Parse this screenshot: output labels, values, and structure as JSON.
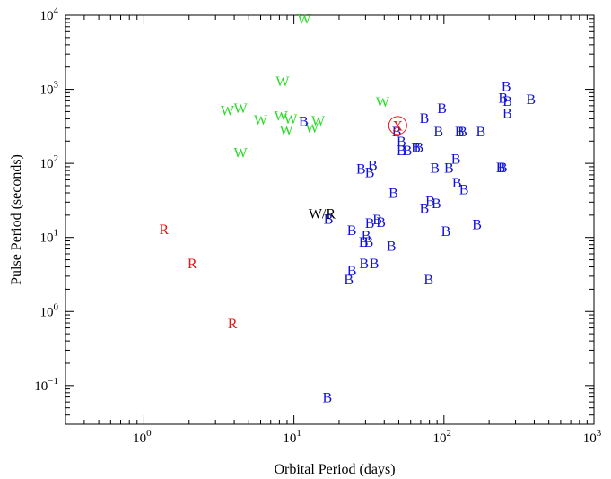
{
  "chart_data": {
    "type": "scatter",
    "title": "",
    "xlabel": "Orbital Period (days)",
    "ylabel": "Pulse Period (seconds)",
    "xscale": "log",
    "yscale": "log",
    "xlim": [
      0.3,
      1000
    ],
    "ylim": [
      0.03,
      10000
    ],
    "grid": false,
    "xticks": [
      {
        "value": 1,
        "mant": "10",
        "exp": "0"
      },
      {
        "value": 10,
        "mant": "10",
        "exp": "1"
      },
      {
        "value": 100,
        "mant": "10",
        "exp": "2"
      },
      {
        "value": 1000,
        "mant": "10",
        "exp": "3"
      }
    ],
    "yticks": [
      {
        "value": 0.1,
        "mant": "10",
        "exp": "−1"
      },
      {
        "value": 1,
        "mant": "10",
        "exp": "0"
      },
      {
        "value": 10,
        "mant": "10",
        "exp": "1"
      },
      {
        "value": 100,
        "mant": "10",
        "exp": "2"
      },
      {
        "value": 1000,
        "mant": "10",
        "exp": "3"
      },
      {
        "value": 10000,
        "mant": "10",
        "exp": "4"
      }
    ],
    "colors": {
      "W": "#22dd22",
      "R": "#ee1111",
      "B": "#1111dd",
      "X": "#ee1111",
      "region": "#000000"
    },
    "series": [
      {
        "marker": "W",
        "points": [
          [
            11.7,
            8900
          ],
          [
            8.4,
            1280
          ],
          [
            39.0,
            680
          ],
          [
            3.6,
            520
          ],
          [
            4.4,
            560
          ],
          [
            6.0,
            390
          ],
          [
            8.2,
            440
          ],
          [
            9.5,
            400
          ],
          [
            8.9,
            280
          ],
          [
            14.5,
            380
          ],
          [
            13.2,
            300
          ],
          [
            4.4,
            140
          ]
        ]
      },
      {
        "marker": "R",
        "points": [
          [
            1.36,
            13
          ],
          [
            2.1,
            4.5
          ],
          [
            3.9,
            0.69
          ]
        ]
      },
      {
        "marker": "B",
        "points": [
          [
            11.6,
            370
          ],
          [
            48.4,
            270
          ],
          [
            52,
            200
          ],
          [
            52,
            150
          ],
          [
            57,
            150
          ],
          [
            65,
            165
          ],
          [
            68,
            165
          ],
          [
            92,
            270
          ],
          [
            127,
            270
          ],
          [
            133,
            270
          ],
          [
            176,
            270
          ],
          [
            74,
            410
          ],
          [
            97,
            560
          ],
          [
            260,
            1100
          ],
          [
            248,
            770
          ],
          [
            265,
            700
          ],
          [
            264,
            480
          ],
          [
            380,
            740
          ],
          [
            28,
            85
          ],
          [
            33.5,
            95
          ],
          [
            32,
            76
          ],
          [
            87,
            87
          ],
          [
            108,
            87
          ],
          [
            120,
            115
          ],
          [
            239,
            89
          ],
          [
            246,
            89
          ],
          [
            46,
            40
          ],
          [
            122,
            55
          ],
          [
            136,
            45
          ],
          [
            81,
            31
          ],
          [
            89,
            29
          ],
          [
            74,
            25
          ],
          [
            17,
            17.9
          ],
          [
            36,
            17.5
          ],
          [
            38,
            16.1
          ],
          [
            32,
            15.8
          ],
          [
            24.3,
            12.5
          ],
          [
            30.3,
            10.7
          ],
          [
            29.1,
            8.7
          ],
          [
            31.5,
            8.8
          ],
          [
            44.6,
            7.7
          ],
          [
            103,
            12.2
          ],
          [
            166,
            15
          ],
          [
            29.3,
            4.5
          ],
          [
            34.3,
            4.5
          ],
          [
            24.3,
            3.6
          ],
          [
            23.2,
            2.7
          ],
          [
            79,
            2.7
          ],
          [
            16.7,
            0.069
          ]
        ]
      },
      {
        "marker": "X",
        "points": [
          [
            49.2,
            325
          ]
        ]
      }
    ],
    "annotations": [
      {
        "text": "W/R",
        "x": 12.5,
        "y": 21
      }
    ]
  }
}
